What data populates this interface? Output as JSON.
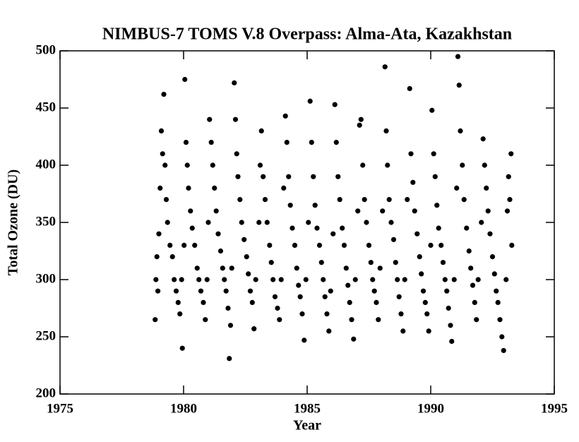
{
  "chart_data": {
    "type": "scatter",
    "title": "NIMBUS-7 TOMS V.8 Overpass: Alma-Ata, Kazakhstan",
    "x_label": "Year",
    "y_label": "Total Ozone (DU)",
    "xlim": [
      1975,
      1995
    ],
    "xticks": [
      1975,
      1980,
      1985,
      1990,
      1995
    ],
    "ylim": [
      200,
      500
    ],
    "yticks": [
      200,
      250,
      300,
      350,
      400,
      450,
      500
    ],
    "color": "#000000",
    "x": [
      1978.85,
      1978.88,
      1978.92,
      1978.96,
      1979.0,
      1979.05,
      1979.1,
      1979.15,
      1979.2,
      1979.25,
      1979.3,
      1979.35,
      1979.45,
      1979.55,
      1979.62,
      1979.7,
      1979.78,
      1979.85,
      1979.92,
      1979.95,
      1980.02,
      1980.05,
      1980.1,
      1980.15,
      1980.2,
      1980.28,
      1980.35,
      1980.45,
      1980.55,
      1980.62,
      1980.7,
      1980.8,
      1980.88,
      1980.95,
      1981.0,
      1981.05,
      1981.12,
      1981.18,
      1981.25,
      1981.32,
      1981.4,
      1981.5,
      1981.58,
      1981.65,
      1981.72,
      1981.8,
      1981.85,
      1981.9,
      1981.95,
      1982.05,
      1982.1,
      1982.15,
      1982.2,
      1982.28,
      1982.35,
      1982.45,
      1982.55,
      1982.62,
      1982.7,
      1982.78,
      1982.85,
      1982.92,
      1983.05,
      1983.1,
      1983.15,
      1983.22,
      1983.3,
      1983.38,
      1983.48,
      1983.55,
      1983.62,
      1983.7,
      1983.8,
      1983.88,
      1983.95,
      1984.05,
      1984.12,
      1984.18,
      1984.25,
      1984.32,
      1984.4,
      1984.5,
      1984.58,
      1984.65,
      1984.72,
      1984.8,
      1984.88,
      1984.95,
      1985.05,
      1985.12,
      1985.18,
      1985.25,
      1985.32,
      1985.4,
      1985.5,
      1985.58,
      1985.65,
      1985.72,
      1985.8,
      1985.88,
      1985.95,
      1986.05,
      1986.12,
      1986.18,
      1986.25,
      1986.32,
      1986.42,
      1986.5,
      1986.58,
      1986.65,
      1986.72,
      1986.8,
      1986.88,
      1986.95,
      1987.05,
      1987.12,
      1987.18,
      1987.25,
      1987.32,
      1987.4,
      1987.5,
      1987.58,
      1987.65,
      1987.72,
      1987.8,
      1987.88,
      1987.95,
      1988.05,
      1988.15,
      1988.2,
      1988.25,
      1988.32,
      1988.4,
      1988.5,
      1988.58,
      1988.65,
      1988.72,
      1988.8,
      1988.88,
      1988.95,
      1989.05,
      1989.15,
      1989.2,
      1989.28,
      1989.35,
      1989.45,
      1989.55,
      1989.62,
      1989.7,
      1989.78,
      1989.85,
      1989.92,
      1990.0,
      1990.05,
      1990.12,
      1990.18,
      1990.25,
      1990.32,
      1990.42,
      1990.5,
      1990.58,
      1990.65,
      1990.72,
      1990.8,
      1990.85,
      1990.95,
      1991.05,
      1991.1,
      1991.15,
      1991.2,
      1991.28,
      1991.35,
      1991.45,
      1991.55,
      1991.62,
      1991.7,
      1991.78,
      1991.85,
      1991.92,
      1992.05,
      1992.12,
      1992.18,
      1992.25,
      1992.32,
      1992.4,
      1992.5,
      1992.58,
      1992.65,
      1992.72,
      1992.8,
      1992.88,
      1992.95,
      1993.05,
      1993.1,
      1993.15,
      1993.2,
      1993.25,
      1993.28
    ],
    "values": [
      265,
      300,
      320,
      290,
      340,
      380,
      430,
      410,
      462,
      400,
      370,
      350,
      330,
      320,
      300,
      290,
      280,
      270,
      300,
      240,
      330,
      475,
      420,
      400,
      380,
      360,
      345,
      330,
      310,
      300,
      290,
      280,
      265,
      300,
      350,
      440,
      420,
      400,
      380,
      360,
      340,
      325,
      310,
      300,
      290,
      275,
      231,
      260,
      310,
      472,
      440,
      410,
      390,
      370,
      350,
      335,
      320,
      305,
      290,
      280,
      257,
      300,
      350,
      400,
      430,
      390,
      370,
      350,
      330,
      315,
      300,
      285,
      275,
      265,
      300,
      380,
      443,
      420,
      390,
      365,
      345,
      330,
      310,
      295,
      285,
      270,
      247,
      300,
      350,
      456,
      420,
      390,
      365,
      345,
      330,
      315,
      300,
      285,
      270,
      255,
      290,
      340,
      453,
      420,
      390,
      370,
      345,
      330,
      310,
      295,
      280,
      265,
      248,
      300,
      360,
      435,
      440,
      400,
      370,
      350,
      330,
      315,
      300,
      290,
      280,
      265,
      310,
      360,
      486,
      430,
      400,
      370,
      350,
      335,
      315,
      300,
      285,
      270,
      255,
      300,
      370,
      467,
      410,
      385,
      360,
      340,
      320,
      305,
      290,
      280,
      270,
      255,
      330,
      448,
      410,
      390,
      365,
      345,
      330,
      315,
      300,
      290,
      275,
      260,
      246,
      300,
      380,
      495,
      470,
      430,
      400,
      370,
      345,
      325,
      310,
      295,
      280,
      265,
      300,
      350,
      423,
      400,
      380,
      360,
      340,
      320,
      305,
      290,
      280,
      265,
      250,
      238,
      300,
      360,
      390,
      370,
      410,
      330
    ]
  }
}
